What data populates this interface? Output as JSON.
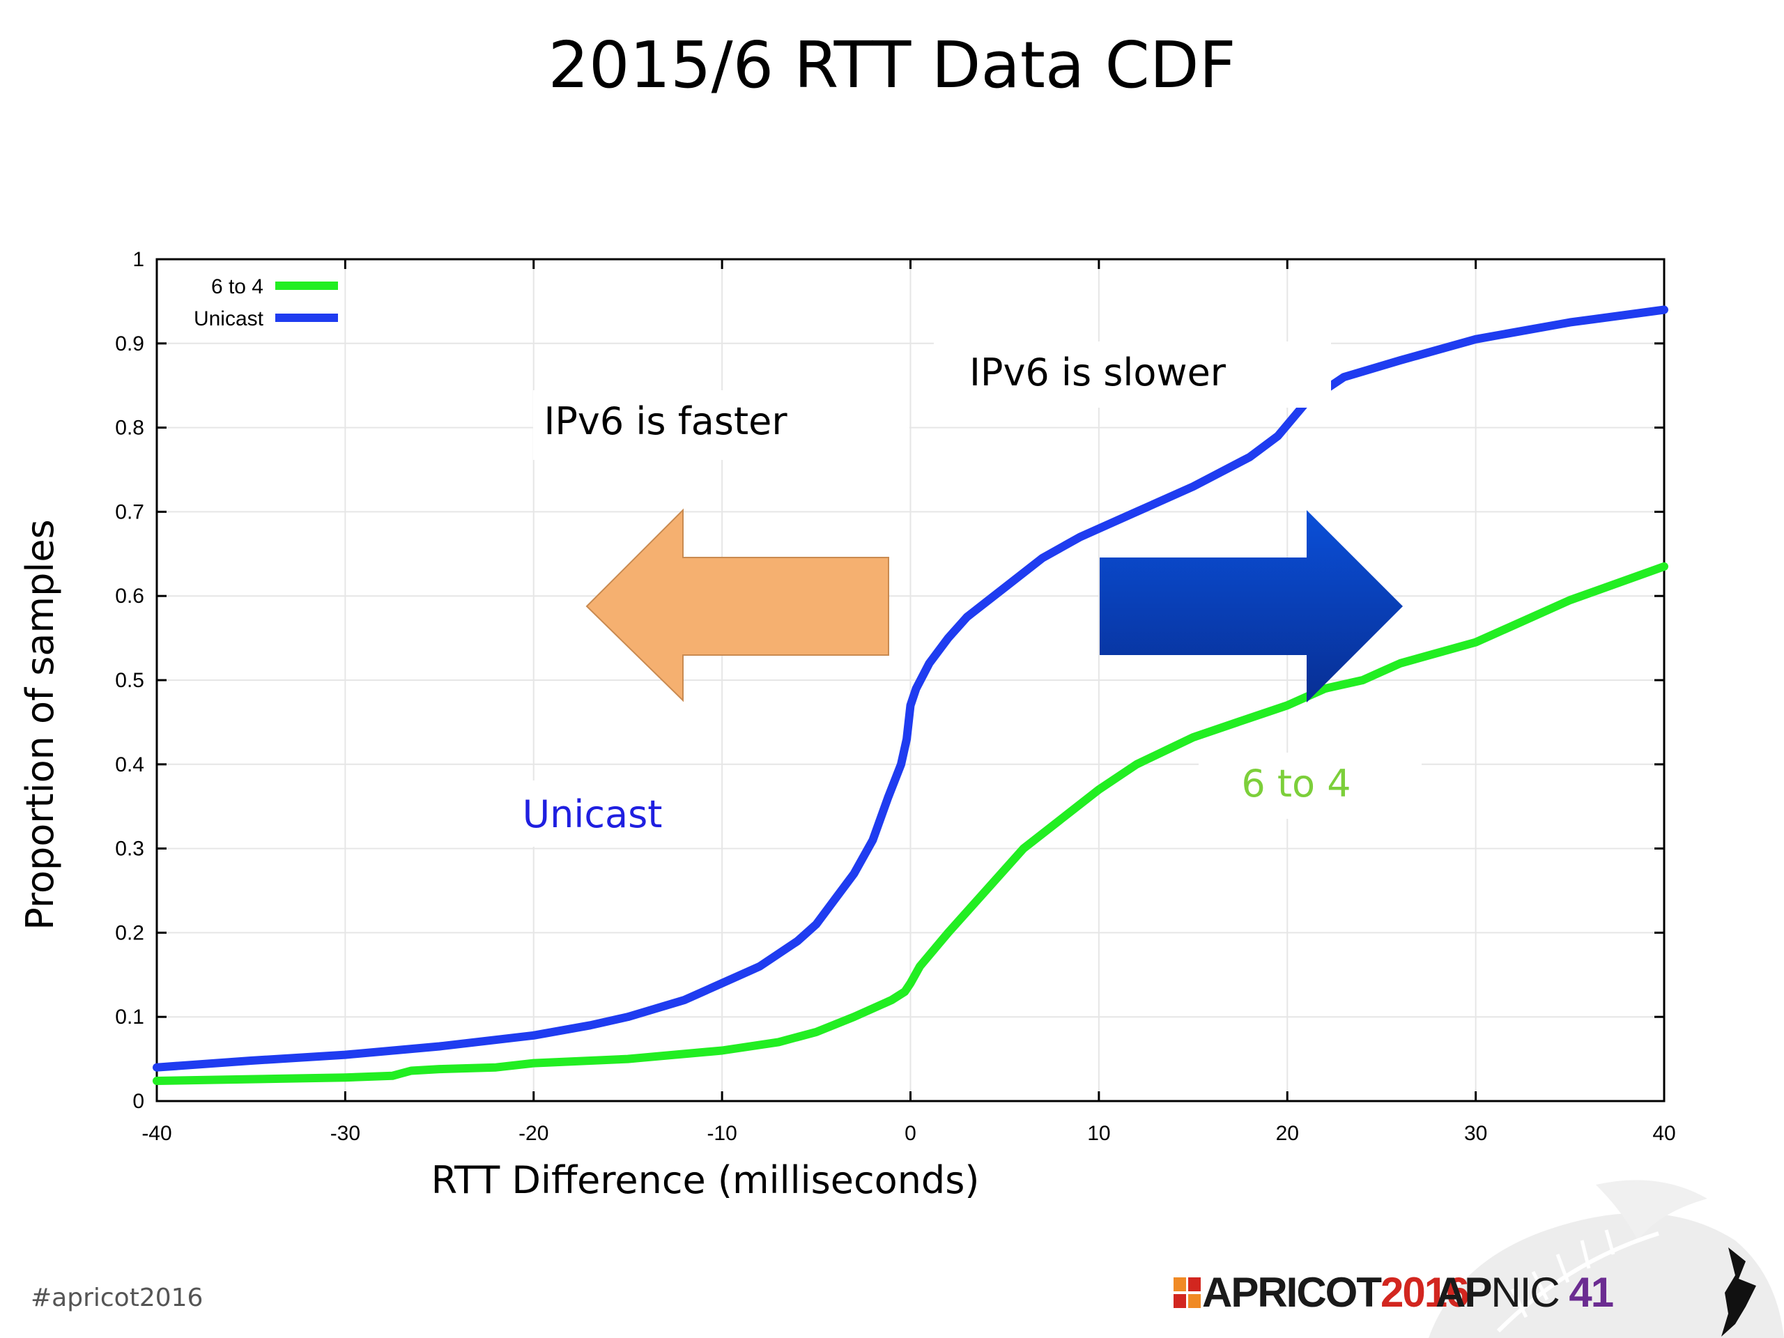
{
  "slide": {
    "title": "2015/6 RTT Data CDF",
    "hashtag": "#apricot2016",
    "footer": {
      "apricot_word": "APRICOT",
      "apricot_year": "2016",
      "apnic_ap": "AP",
      "apnic_nic": "NIC",
      "apnic_num": "41"
    }
  },
  "colors": {
    "unicast": "#1f3cf0",
    "six_to_four": "#22ee22",
    "faster_arrow": "#f5b070",
    "slower_arrow": "#0b3fb8",
    "unicast_label": "#1f1fe0",
    "six_to_four_label": "#7ccf3a"
  },
  "annotations": {
    "faster": "IPv6 is faster",
    "slower": "IPv6 is slower",
    "unicast_label": "Unicast",
    "six_to_four_label": "6 to 4"
  },
  "chart_data": {
    "type": "line",
    "title": "",
    "xlabel": "RTT Difference (milliseconds)",
    "ylabel": "Proportion of samples",
    "xlim": [
      -40,
      40
    ],
    "ylim": [
      0,
      1
    ],
    "xticks": [
      -40,
      -30,
      -20,
      -10,
      0,
      10,
      20,
      30,
      40
    ],
    "yticks": [
      0,
      0.1,
      0.2,
      0.3,
      0.4,
      0.5,
      0.6,
      0.7,
      0.8,
      0.9,
      1
    ],
    "grid": true,
    "legend": "top-left",
    "series": [
      {
        "name": "6 to 4",
        "color": "#22ee22",
        "x": [
          -40,
          -35,
          -30,
          -27.5,
          -27,
          -26.5,
          -25,
          -22,
          -20,
          -15,
          -10,
          -7,
          -5,
          -3,
          -1,
          -0.3,
          0,
          0.5,
          2,
          4,
          6,
          8,
          10,
          12,
          15,
          18,
          20,
          22,
          24,
          25,
          26,
          30,
          32,
          35,
          40
        ],
        "y": [
          0.024,
          0.026,
          0.028,
          0.03,
          0.033,
          0.036,
          0.038,
          0.04,
          0.045,
          0.05,
          0.06,
          0.07,
          0.082,
          0.1,
          0.12,
          0.13,
          0.14,
          0.16,
          0.2,
          0.25,
          0.3,
          0.335,
          0.37,
          0.4,
          0.432,
          0.455,
          0.47,
          0.49,
          0.5,
          0.51,
          0.52,
          0.545,
          0.565,
          0.595,
          0.635
        ]
      },
      {
        "name": "Unicast",
        "color": "#1f3cf0",
        "x": [
          -40,
          -35,
          -30,
          -25,
          -20,
          -17,
          -15,
          -12,
          -10,
          -8,
          -6,
          -5,
          -4,
          -3,
          -2,
          -1.2,
          -0.5,
          -0.2,
          0,
          0.3,
          1,
          2,
          3,
          5,
          7,
          9,
          12,
          15,
          18,
          19.5,
          21,
          23,
          26,
          30,
          35,
          40
        ],
        "y": [
          0.04,
          0.048,
          0.055,
          0.065,
          0.078,
          0.09,
          0.1,
          0.12,
          0.14,
          0.16,
          0.19,
          0.21,
          0.24,
          0.27,
          0.31,
          0.36,
          0.4,
          0.43,
          0.47,
          0.49,
          0.52,
          0.55,
          0.575,
          0.61,
          0.645,
          0.67,
          0.7,
          0.73,
          0.765,
          0.79,
          0.83,
          0.86,
          0.88,
          0.905,
          0.925,
          0.94
        ]
      }
    ]
  }
}
